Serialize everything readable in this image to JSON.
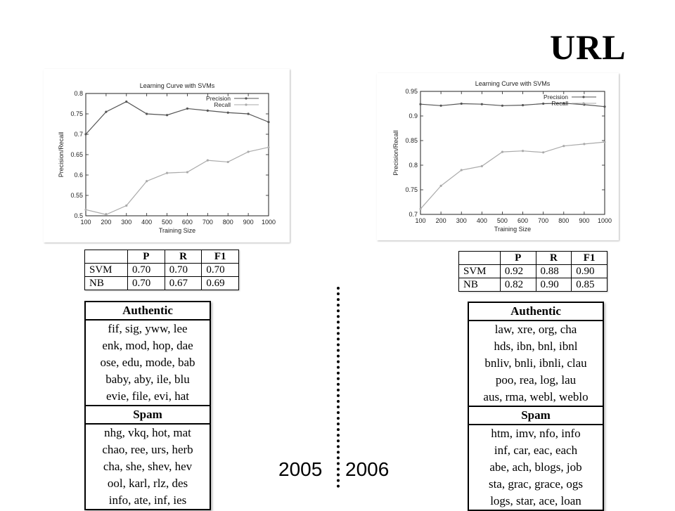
{
  "title": "URL",
  "chart_data": [
    {
      "type": "line",
      "title": "Learning Curve with SVMs",
      "xlabel": "Training Size",
      "ylabel": "Precision/Recall",
      "x": [
        100,
        200,
        300,
        400,
        500,
        600,
        700,
        800,
        900,
        1000
      ],
      "xlim": [
        100,
        1000
      ],
      "ylim": [
        0.5,
        0.8
      ],
      "yticks": [
        0.5,
        0.55,
        0.6,
        0.65,
        0.7,
        0.75,
        0.8
      ],
      "legend": "top-right",
      "series": [
        {
          "name": "Precision",
          "values": [
            0.7,
            0.755,
            0.78,
            0.75,
            0.747,
            0.763,
            0.758,
            0.753,
            0.75,
            0.73
          ]
        },
        {
          "name": "Recall",
          "values": [
            0.515,
            0.503,
            0.525,
            0.585,
            0.605,
            0.607,
            0.636,
            0.632,
            0.657,
            0.668
          ]
        }
      ]
    },
    {
      "type": "line",
      "title": "Learning Curve with SVMs",
      "xlabel": "Training Size",
      "ylabel": "Precision/Recall",
      "x": [
        100,
        200,
        300,
        400,
        500,
        600,
        700,
        800,
        900,
        1000
      ],
      "xlim": [
        100,
        1000
      ],
      "ylim": [
        0.7,
        0.95
      ],
      "yticks": [
        0.7,
        0.75,
        0.8,
        0.85,
        0.9,
        0.95
      ],
      "legend": "top-right",
      "series": [
        {
          "name": "Precision",
          "values": [
            0.924,
            0.921,
            0.925,
            0.924,
            0.921,
            0.922,
            0.925,
            0.926,
            0.923,
            0.919
          ]
        },
        {
          "name": "Recall",
          "values": [
            0.711,
            0.758,
            0.79,
            0.798,
            0.827,
            0.829,
            0.826,
            0.839,
            0.843,
            0.847
          ]
        }
      ]
    }
  ],
  "metrics_2005": {
    "headers": [
      "",
      "P",
      "R",
      "F1"
    ],
    "rows": [
      [
        "SVM",
        "0.70",
        "0.70",
        "0.70"
      ],
      [
        "NB",
        "0.70",
        "0.67",
        "0.69"
      ]
    ]
  },
  "metrics_2006": {
    "headers": [
      "",
      "P",
      "R",
      "F1"
    ],
    "rows": [
      [
        "SVM",
        "0.92",
        "0.88",
        "0.90"
      ],
      [
        "NB",
        "0.82",
        "0.90",
        "0.85"
      ]
    ]
  },
  "words_2005": {
    "authentic_header": "Authentic",
    "authentic": [
      "fif, sig, yww, lee",
      "enk, mod, hop, dae",
      "ose, edu, mode, bab",
      "baby, aby, ile, blu",
      "evie, file, evi, hat"
    ],
    "spam_header": "Spam",
    "spam": [
      "nhg, vkq, hot, mat",
      "chao, ree, urs, herb",
      "cha, she, shev, hev",
      "ool, karl, rlz, des",
      "info, ate, inf, ies"
    ]
  },
  "words_2006": {
    "authentic_header": "Authentic",
    "authentic": [
      "law, xre, org, cha",
      "hds, ibn, bnl, ibnl",
      "bnliv, bnli, ibnli, clau",
      "poo, rea, log, lau",
      "aus, rma, webl, weblo"
    ],
    "spam_header": "Spam",
    "spam": [
      "htm, imv, nfo, info",
      "inf, car, eac, each",
      "abe, ach, blogs, job",
      "sta, grac, grace, ogs",
      "logs, star, ace, loan"
    ]
  },
  "years": {
    "left": "2005",
    "right": "2006"
  }
}
